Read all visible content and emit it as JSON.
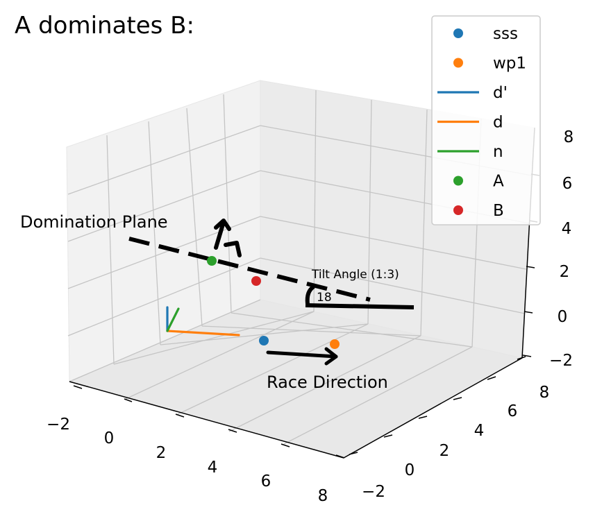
{
  "chart_data": {
    "type": "scatter",
    "projection": "3d",
    "title": "A dominates B:",
    "xlabel": "",
    "ylabel": "",
    "zlabel": "",
    "xlim": [
      -2,
      8
    ],
    "ylim": [
      -2,
      8
    ],
    "zlim": [
      -2,
      8
    ],
    "grid": true,
    "legend_position": "top-right",
    "x_ticks": [
      "−2",
      "0",
      "2",
      "4",
      "6",
      "8"
    ],
    "y_ticks": [
      "−2",
      "0",
      "2",
      "4",
      "6",
      "8"
    ],
    "z_ticks": [
      "−2",
      "0",
      "2",
      "4",
      "6",
      "8"
    ],
    "legend": [
      {
        "label": "sss",
        "kind": "marker",
        "color": "#1f77b4"
      },
      {
        "label": "wp1",
        "kind": "marker",
        "color": "#ff7f0e"
      },
      {
        "label": "d'",
        "kind": "line",
        "color": "#1f77b4"
      },
      {
        "label": "d",
        "kind": "line",
        "color": "#ff7f0e"
      },
      {
        "label": "n",
        "kind": "line",
        "color": "#2ca02c"
      },
      {
        "label": "A",
        "kind": "marker",
        "color": "#2ca02c"
      },
      {
        "label": "B",
        "kind": "marker",
        "color": "#d62728"
      }
    ],
    "annotations": {
      "plane": "Domination Plane",
      "race": "Race Direction",
      "tilt": "Tilt Angle (1:3)",
      "tilt_value": "18"
    }
  }
}
